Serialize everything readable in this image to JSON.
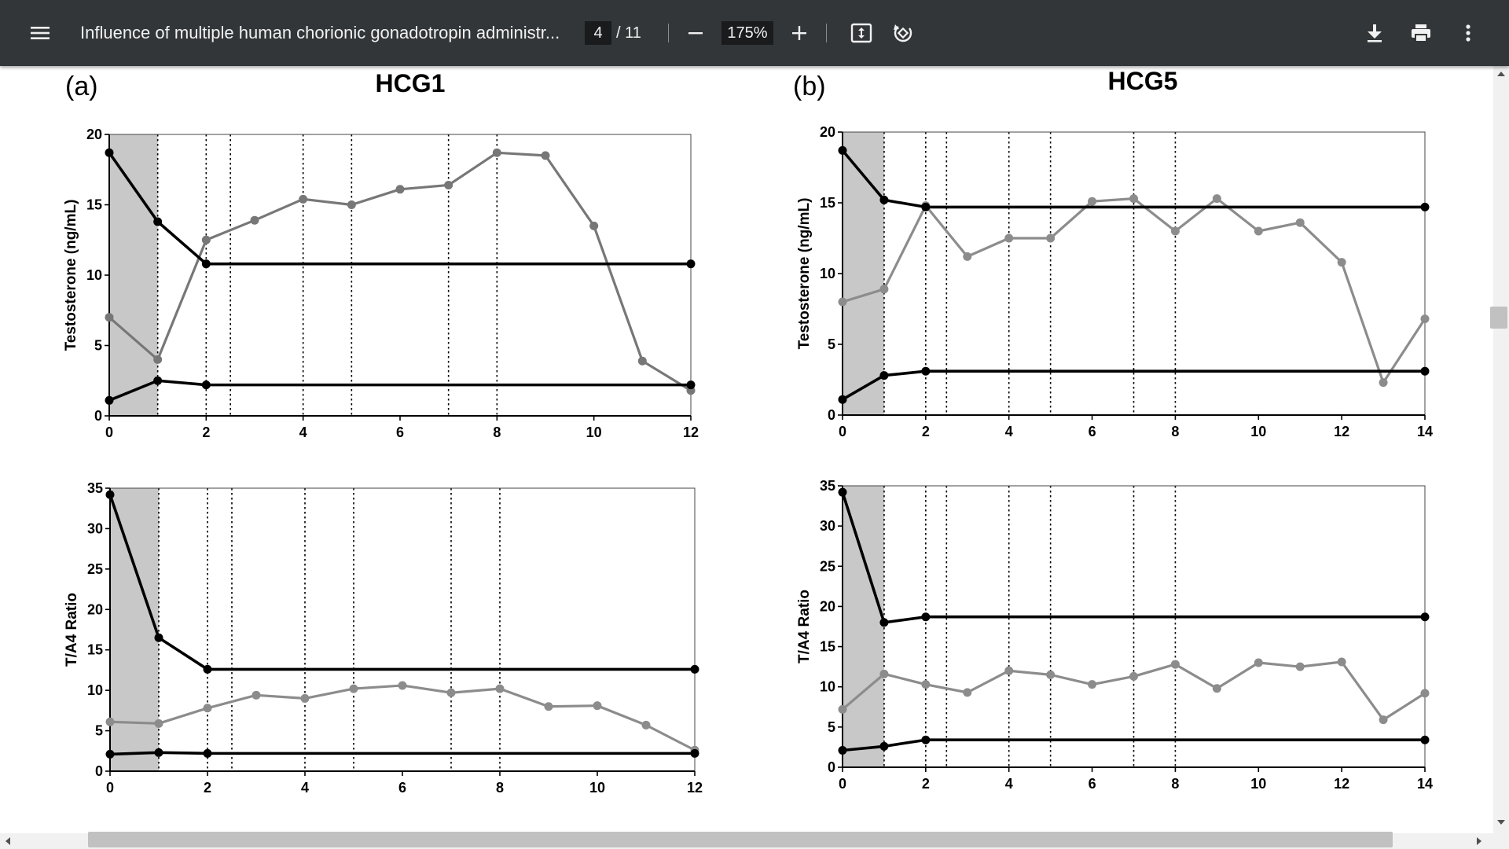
{
  "toolbar": {
    "title": "Influence of multiple human chorionic gonadotropin administr...",
    "page_current": "4",
    "page_total": "/ 11",
    "zoom": "175%",
    "icons": [
      "menu-icon",
      "zoom-out-icon",
      "zoom-in-icon",
      "fit-page-icon",
      "rotate-icon",
      "download-icon",
      "print-icon",
      "more-vert-icon"
    ]
  },
  "panels": {
    "a_label": "(a)",
    "a_title": "HCG1",
    "b_label": "(b)",
    "b_title": "HCG5"
  },
  "colors": {
    "dark": "#000000",
    "gray": "#777777",
    "light_gray": "#8c8c8c",
    "shade": "#c8c8c8"
  },
  "chart_data": [
    {
      "type": "line",
      "panel": "(a)",
      "title": "HCG1",
      "xlabel": "",
      "ylabel": "Testosterone (ng/mL)",
      "xlim": [
        0,
        12
      ],
      "ylim": [
        0,
        20
      ],
      "xticks": [
        0,
        2,
        4,
        6,
        8,
        10,
        12
      ],
      "yticks": [
        0,
        5,
        10,
        15,
        20
      ],
      "shaded_x": [
        0,
        1
      ],
      "vlines": [
        1,
        2,
        2.5,
        4,
        5,
        7,
        8
      ],
      "series": [
        {
          "style": "gray",
          "x": [
            0,
            1,
            2,
            3,
            4,
            5,
            6,
            7,
            8,
            9,
            10,
            11,
            12
          ],
          "y": [
            7,
            4,
            12.5,
            13.9,
            15.4,
            15,
            16.1,
            16.4,
            18.7,
            18.5,
            13.5,
            3.9,
            1.8
          ]
        },
        {
          "style": "dark",
          "x": [
            0,
            1,
            2,
            12
          ],
          "y": [
            18.7,
            13.8,
            10.8,
            10.8
          ]
        },
        {
          "style": "dark",
          "x": [
            0,
            1,
            2,
            12
          ],
          "y": [
            1.1,
            2.5,
            2.2,
            2.2
          ]
        }
      ]
    },
    {
      "type": "line",
      "panel": "(b)",
      "title": "HCG5",
      "xlabel": "",
      "ylabel": "Testosterone (ng/mL)",
      "xlim": [
        0,
        14
      ],
      "ylim": [
        0,
        20
      ],
      "xticks": [
        0,
        2,
        4,
        6,
        8,
        10,
        12,
        14
      ],
      "yticks": [
        0,
        5,
        10,
        15,
        20
      ],
      "shaded_x": [
        0,
        1
      ],
      "vlines": [
        1,
        2,
        2.5,
        4,
        5,
        7,
        8
      ],
      "series": [
        {
          "style": "light",
          "x": [
            0,
            1,
            2,
            3,
            4,
            5,
            6,
            7,
            8,
            9,
            10,
            11,
            12,
            13,
            14
          ],
          "y": [
            8,
            8.9,
            14.8,
            11.2,
            12.5,
            12.5,
            15.1,
            15.3,
            13,
            15.3,
            13,
            13.6,
            10.8,
            2.3,
            6.8
          ]
        },
        {
          "style": "dark",
          "x": [
            0,
            1,
            2,
            14
          ],
          "y": [
            18.7,
            15.2,
            14.7,
            14.7
          ]
        },
        {
          "style": "dark",
          "x": [
            0,
            1,
            2,
            14
          ],
          "y": [
            1.1,
            2.8,
            3.1,
            3.1
          ]
        }
      ]
    },
    {
      "type": "line",
      "panel": "(a)",
      "title": "",
      "xlabel": "",
      "ylabel": "T/A4 Ratio",
      "xlim": [
        0,
        12
      ],
      "ylim": [
        0,
        35
      ],
      "xticks": [
        0,
        2,
        4,
        6,
        8,
        10,
        12
      ],
      "yticks": [
        0,
        5,
        10,
        15,
        20,
        25,
        30,
        35
      ],
      "shaded_x": [
        0,
        1
      ],
      "vlines": [
        1,
        2,
        2.5,
        4,
        5,
        7,
        8
      ],
      "series": [
        {
          "style": "light",
          "x": [
            0,
            1,
            2,
            3,
            4,
            5,
            6,
            7,
            8,
            9,
            10,
            11,
            12
          ],
          "y": [
            6.1,
            5.9,
            7.8,
            9.4,
            9,
            10.2,
            10.6,
            9.7,
            10.2,
            8,
            8.1,
            5.7,
            2.6
          ]
        },
        {
          "style": "dark",
          "x": [
            0,
            1,
            2,
            12
          ],
          "y": [
            34.2,
            16.5,
            12.6,
            12.6
          ]
        },
        {
          "style": "dark",
          "x": [
            0,
            1,
            2,
            12
          ],
          "y": [
            2.1,
            2.3,
            2.2,
            2.2
          ]
        }
      ]
    },
    {
      "type": "line",
      "panel": "(b)",
      "title": "",
      "xlabel": "",
      "ylabel": "T/A4 Ratio",
      "xlim": [
        0,
        14
      ],
      "ylim": [
        0,
        35
      ],
      "xticks": [
        0,
        2,
        4,
        6,
        8,
        10,
        12,
        14
      ],
      "yticks": [
        0,
        5,
        10,
        15,
        20,
        25,
        30,
        35
      ],
      "shaded_x": [
        0,
        1
      ],
      "vlines": [
        1,
        2,
        2.5,
        4,
        5,
        7,
        8
      ],
      "series": [
        {
          "style": "light",
          "x": [
            0,
            1,
            2,
            3,
            4,
            5,
            6,
            7,
            8,
            9,
            10,
            11,
            12,
            13,
            14
          ],
          "y": [
            7.2,
            11.6,
            10.3,
            9.3,
            12,
            11.5,
            10.3,
            11.3,
            12.8,
            9.8,
            13,
            12.5,
            13.1,
            5.9,
            9.2
          ]
        },
        {
          "style": "dark",
          "x": [
            0,
            1,
            2,
            14
          ],
          "y": [
            34.2,
            18,
            18.7,
            18.7
          ]
        },
        {
          "style": "dark",
          "x": [
            0,
            1,
            2,
            14
          ],
          "y": [
            2.1,
            2.6,
            3.4,
            3.4
          ]
        }
      ]
    }
  ]
}
